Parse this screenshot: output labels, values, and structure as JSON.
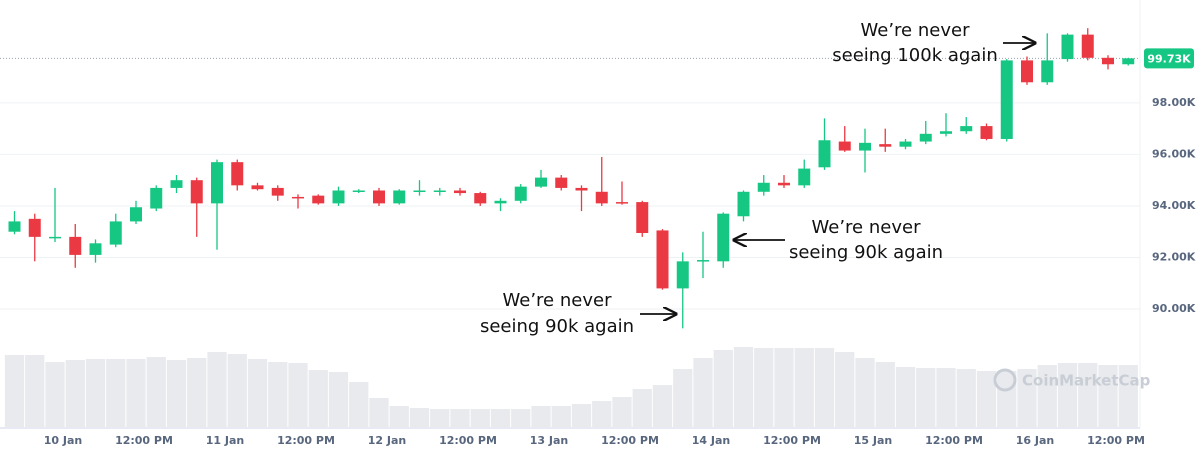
{
  "chart_data": {
    "type": "candlestick",
    "categories": [
      null,
      null,
      "10 Jan",
      null,
      null,
      null,
      "12:00 PM",
      null,
      null,
      null,
      "11 Jan",
      null,
      null,
      null,
      "12:00 PM",
      null,
      null,
      null,
      "12 Jan",
      null,
      null,
      null,
      "12:00 PM",
      null,
      null,
      null,
      "13 Jan",
      null,
      null,
      null,
      "12:00 PM",
      null,
      null,
      null,
      "14 Jan",
      null,
      null,
      null,
      "12:00 PM",
      null,
      null,
      null,
      "15 Jan",
      null,
      null,
      null,
      "12:00 PM",
      null,
      null,
      null,
      "16 Jan",
      null,
      null,
      null,
      "12:00 PM",
      null
    ],
    "open": [
      93000,
      93500,
      92750,
      92800,
      92100,
      92500,
      93400,
      93900,
      94700,
      95000,
      94100,
      95700,
      94800,
      94700,
      94350,
      94400,
      94100,
      94550,
      94600,
      94100,
      94550,
      94550,
      94600,
      94500,
      94100,
      94200,
      94750,
      95100,
      94700,
      94550,
      94150,
      94150,
      93050,
      90800,
      91850,
      91850,
      93600,
      94550,
      94900,
      94800,
      95500,
      96500,
      96150,
      96400,
      96300,
      96500,
      96800,
      96900,
      97100,
      96600,
      99650,
      98800,
      99700,
      100650,
      99750,
      99500
    ],
    "high": [
      93800,
      93700,
      94700,
      93300,
      92700,
      93700,
      94200,
      94800,
      95200,
      95100,
      95800,
      95800,
      94900,
      94800,
      94450,
      94450,
      94750,
      94650,
      94700,
      94650,
      95000,
      94700,
      94700,
      94550,
      94300,
      94850,
      95400,
      95200,
      94800,
      95900,
      94950,
      94200,
      93100,
      92200,
      93000,
      93750,
      94600,
      95200,
      95200,
      95800,
      97400,
      97100,
      97000,
      97000,
      96600,
      97300,
      97600,
      97450,
      97200,
      99700,
      99800,
      100700,
      100700,
      100900,
      99850,
      99750
    ],
    "low": [
      92900,
      91850,
      92600,
      91600,
      91800,
      92400,
      93300,
      93800,
      94500,
      92800,
      92300,
      94600,
      94600,
      94200,
      93900,
      94050,
      94000,
      94500,
      94000,
      94050,
      94400,
      94400,
      94400,
      94000,
      93800,
      94100,
      94700,
      94600,
      93800,
      94000,
      94050,
      92800,
      90750,
      89250,
      91200,
      91600,
      93400,
      94400,
      94700,
      94700,
      95400,
      96100,
      95300,
      96100,
      96200,
      96400,
      96700,
      96800,
      96550,
      96500,
      98700,
      98700,
      99600,
      99650,
      99300,
      99450
    ],
    "close": [
      93400,
      92800,
      92800,
      92100,
      92550,
      93400,
      93950,
      94700,
      95000,
      94100,
      95700,
      94800,
      94650,
      94400,
      94300,
      94100,
      94600,
      94600,
      94100,
      94600,
      94600,
      94600,
      94500,
      94100,
      94200,
      94750,
      95100,
      94700,
      94600,
      94100,
      94100,
      92950,
      90800,
      91850,
      91900,
      93700,
      94550,
      94900,
      94800,
      95450,
      96550,
      96150,
      96450,
      96300,
      96500,
      96800,
      96900,
      97100,
      96600,
      99650,
      98800,
      99650,
      100650,
      99750,
      99500,
      99730
    ],
    "volume": [
      72,
      72,
      65,
      67,
      68,
      68,
      68,
      70,
      67,
      69,
      75,
      73,
      68,
      65,
      64,
      57,
      55,
      45,
      29,
      21,
      19,
      18,
      18,
      18,
      18,
      18,
      21,
      21,
      23,
      26,
      30,
      38,
      42,
      58,
      69,
      77,
      80,
      79,
      79,
      79,
      79,
      75,
      69,
      65,
      60,
      59,
      59,
      58,
      56,
      56,
      58,
      62,
      64,
      64,
      62,
      62
    ],
    "up_color": "#16c784",
    "down_color": "#ea3943",
    "volume_color": "#e8eaed",
    "ylim": [
      85420,
      101800
    ],
    "yticks": [
      {
        "value": 90000,
        "label": "90.00K"
      },
      {
        "value": 92000,
        "label": "92.00K"
      },
      {
        "value": 94000,
        "label": "94.00K"
      },
      {
        "value": 96000,
        "label": "96.00K"
      },
      {
        "value": 98000,
        "label": "98.00K"
      }
    ],
    "grid": true,
    "last_price": {
      "value": 99730,
      "label": "99.73K"
    },
    "watermark": "CoinMarketCap",
    "annotations": [
      {
        "lines": [
          "We’re never",
          "seeing 100k again"
        ]
      },
      {
        "lines": [
          "We’re never",
          "seeing 90k again"
        ]
      },
      {
        "lines": [
          "We’re never",
          "seeing 90k again"
        ]
      }
    ]
  }
}
